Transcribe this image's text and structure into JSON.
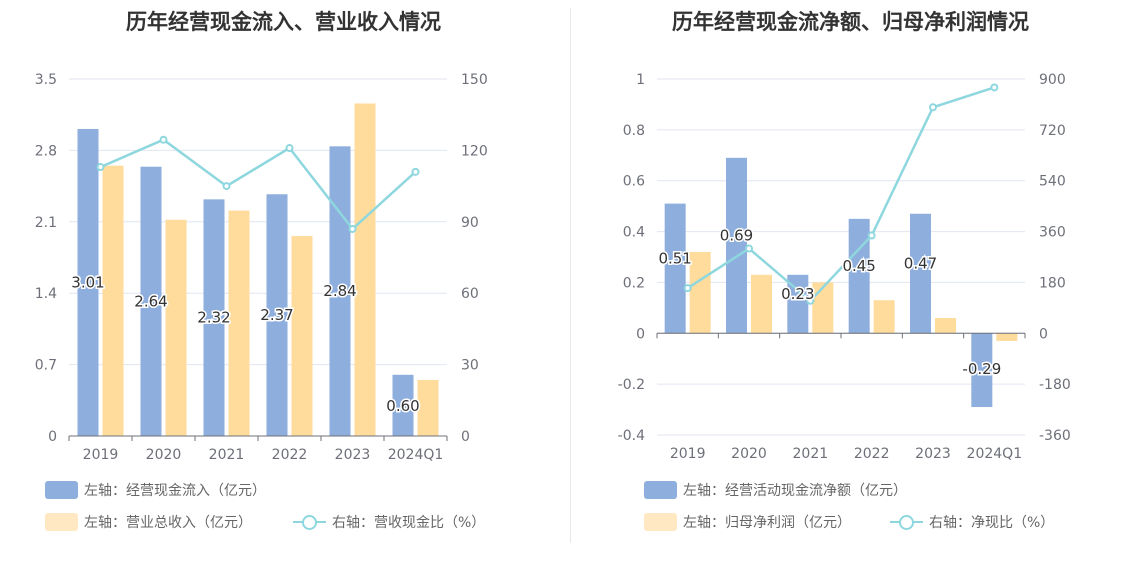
{
  "chart_data": [
    {
      "type": "bar",
      "title": "历年经营现金流入、营业收入情况",
      "categories": [
        "2019",
        "2020",
        "2021",
        "2022",
        "2023",
        "2024Q1"
      ],
      "left_axis": {
        "ticks": [
          "0",
          "0.7",
          "1.4",
          "2.1",
          "2.8",
          "3.5"
        ],
        "ylim": [
          0,
          3.5
        ]
      },
      "right_axis": {
        "ticks": [
          "0",
          "30",
          "60",
          "90",
          "120",
          "150"
        ],
        "ylim": [
          0,
          150
        ]
      },
      "series": [
        {
          "name": "左轴：经营现金流入（亿元）",
          "kind": "bar",
          "axis": "left",
          "color": "#8eaedd",
          "values": [
            3.01,
            2.64,
            2.32,
            2.37,
            2.84,
            0.6
          ],
          "labels": [
            "3.01",
            "2.64",
            "2.32",
            "2.37",
            "2.84",
            "0.60"
          ]
        },
        {
          "name": "左轴：营业总收入（亿元）",
          "kind": "bar",
          "axis": "left",
          "color": "#ffdb9c",
          "values": [
            2.65,
            2.12,
            2.21,
            1.96,
            3.26,
            0.55
          ]
        },
        {
          "name": "右轴：营收现金比（%）",
          "kind": "line",
          "axis": "right",
          "color": "#8ed7de",
          "values": [
            113,
            124.5,
            105,
            121,
            87,
            111
          ]
        }
      ]
    },
    {
      "type": "bar",
      "title": "历年经营现金流净额、归母净利润情况",
      "categories": [
        "2019",
        "2020",
        "2021",
        "2022",
        "2023",
        "2024Q1"
      ],
      "left_axis": {
        "ticks": [
          "-0.4",
          "-0.2",
          "0",
          "0.2",
          "0.4",
          "0.6",
          "0.8",
          "1"
        ],
        "ylim": [
          -0.4,
          1
        ]
      },
      "right_axis": {
        "ticks": [
          "-360",
          "-180",
          "0",
          "180",
          "360",
          "540",
          "720",
          "900"
        ],
        "ylim": [
          -360,
          900
        ]
      },
      "series": [
        {
          "name": "左轴：经营活动现金流净额（亿元）",
          "kind": "bar",
          "axis": "left",
          "color": "#8eaedd",
          "values": [
            0.51,
            0.69,
            0.23,
            0.45,
            0.47,
            -0.29
          ],
          "labels": [
            "0.51",
            "0.69",
            "0.23",
            "0.45",
            "0.47",
            "-0.29"
          ]
        },
        {
          "name": "左轴：归母净利润（亿元）",
          "kind": "bar",
          "axis": "left",
          "color": "#ffdb9c",
          "values": [
            0.32,
            0.23,
            0.2,
            0.13,
            0.06,
            -0.03
          ]
        },
        {
          "name": "右轴：净现比（%）",
          "kind": "line",
          "axis": "right",
          "color": "#8ed7de",
          "values": [
            160,
            300,
            115,
            346,
            800,
            870
          ]
        }
      ]
    }
  ]
}
